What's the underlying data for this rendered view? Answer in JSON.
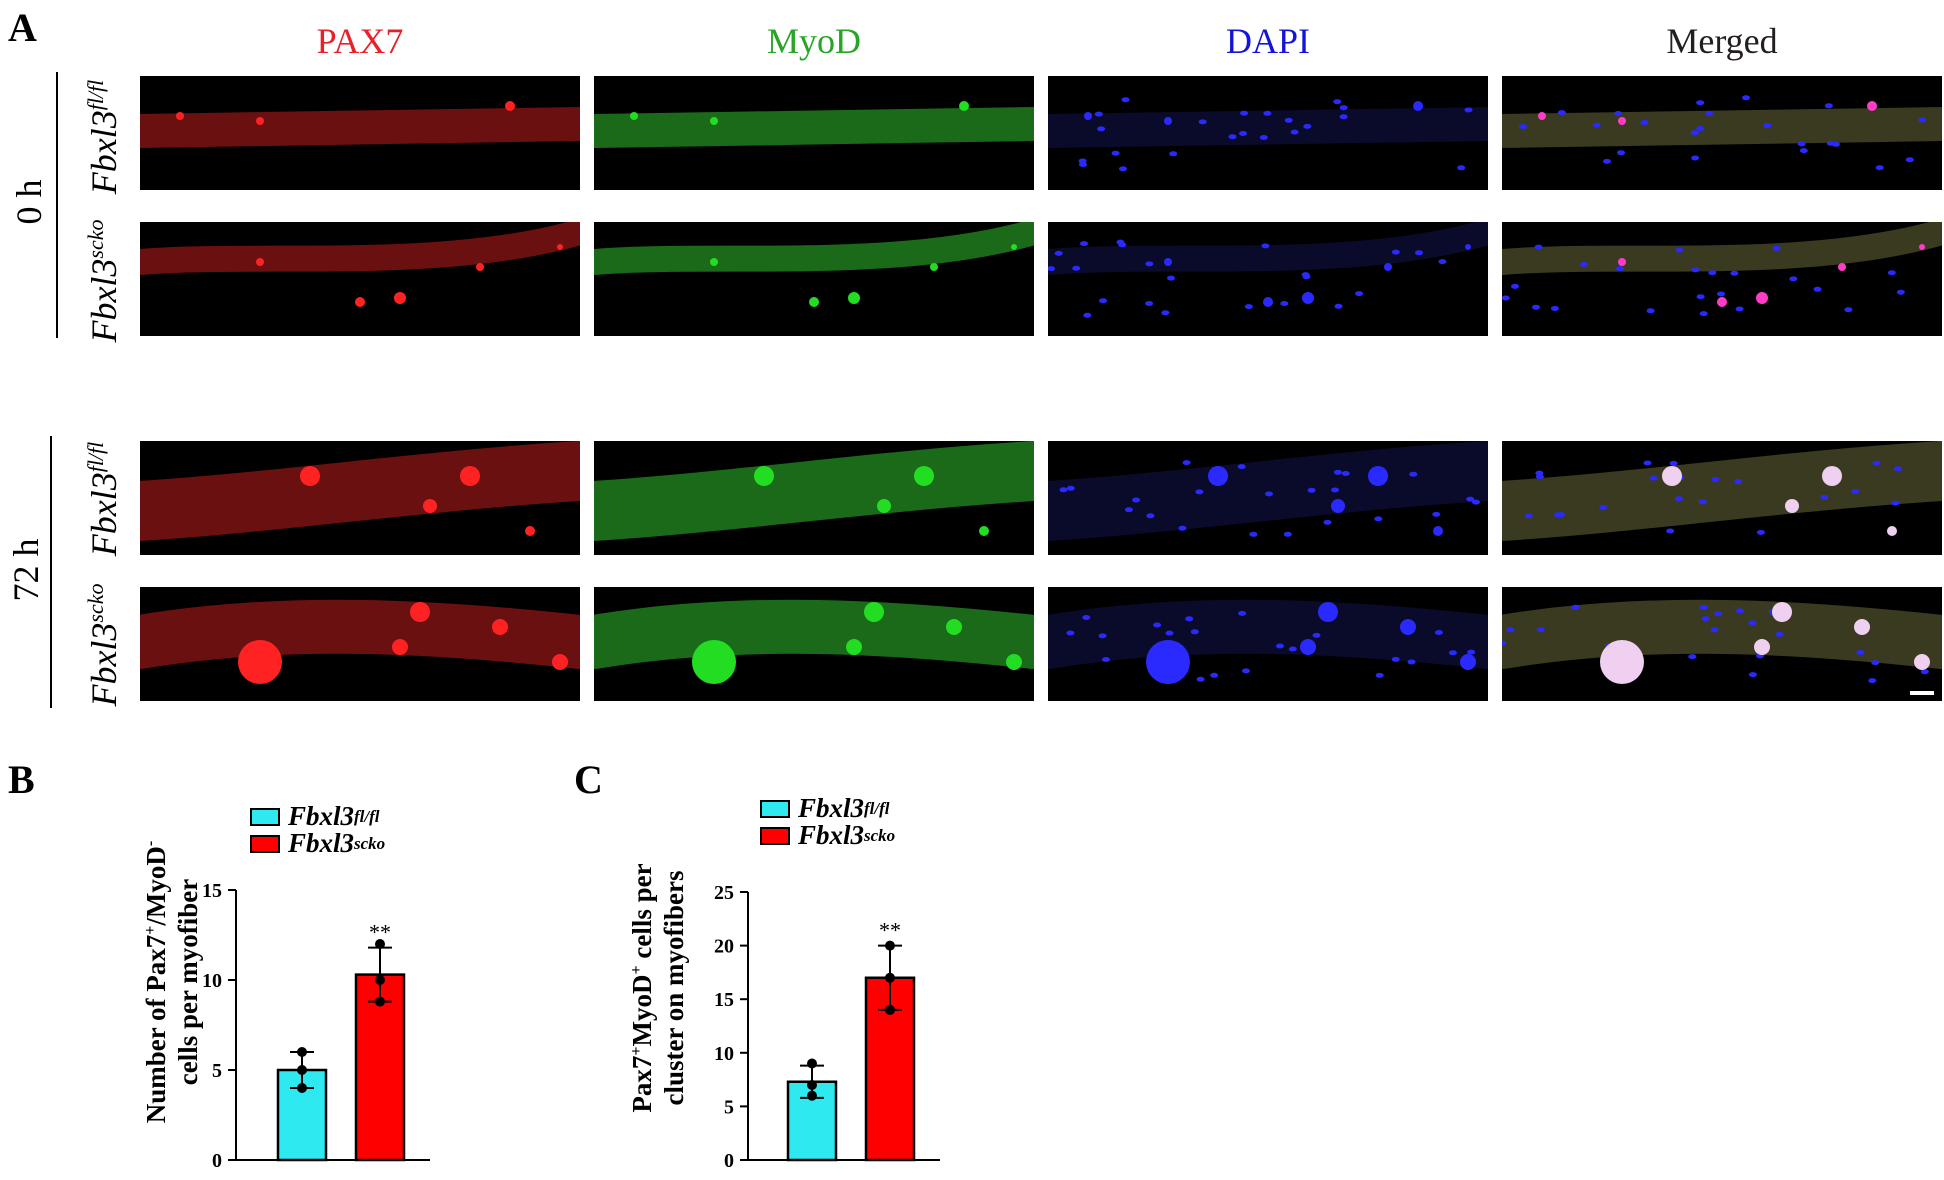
{
  "panels": {
    "a": "A",
    "b": "B",
    "c": "C"
  },
  "columns": [
    "PAX7",
    "MyoD",
    "DAPI",
    "Merged"
  ],
  "column_colors": [
    "#e8202a",
    "#26a526",
    "#1414d8",
    "#231f20"
  ],
  "time_points": [
    "0 h",
    "72 h"
  ],
  "genotypes": {
    "flox": {
      "base": "Fbxl3",
      "sup": "fl/fl"
    },
    "scko": {
      "base": "Fbxl3",
      "sup": "scko"
    }
  },
  "chart_b_ylabel": {
    "line1_pre": "Number of Pax7",
    "line1_sup1": "+",
    "line1_mid": "/MyoD",
    "line1_sup2": "-",
    "line2": "cells per myofiber"
  },
  "chart_c_ylabel": {
    "line1_pre": "Pax7",
    "line1_sup1": "+",
    "line1_mid": "MyoD",
    "line1_sup2": "+",
    "line1_post": " cells per",
    "line2": "cluster on myofibers"
  },
  "chart_data": [
    {
      "type": "bar",
      "panel": "B",
      "categories": [
        "Fbxl3fl/fl",
        "Fbxl3scko"
      ],
      "values": [
        5.0,
        10.3
      ],
      "error": [
        1.0,
        1.5
      ],
      "points": [
        [
          6.0,
          5.0,
          4.0
        ],
        [
          12.0,
          10.0,
          8.8
        ]
      ],
      "colors": [
        "#2ee9ef",
        "#ff0000"
      ],
      "ylim": [
        0,
        15
      ],
      "yticks": [
        0,
        5,
        10,
        15
      ],
      "significance": "**",
      "xlabel": "",
      "ylabel": "Number of Pax7+/MyoD- cells per myofiber"
    },
    {
      "type": "bar",
      "panel": "C",
      "categories": [
        "Fbxl3fl/fl",
        "Fbxl3scko"
      ],
      "values": [
        7.3,
        17.0
      ],
      "error": [
        1.5,
        3.0
      ],
      "points": [
        [
          9.0,
          7.0,
          6.0
        ],
        [
          20.0,
          17.0,
          14.0
        ]
      ],
      "colors": [
        "#2ee9ef",
        "#ff0000"
      ],
      "ylim": [
        0,
        25
      ],
      "yticks": [
        0,
        5,
        10,
        15,
        20,
        25
      ],
      "significance": "**",
      "xlabel": "",
      "ylabel": "Pax7+MyoD+ cells per cluster on myofibers"
    }
  ]
}
